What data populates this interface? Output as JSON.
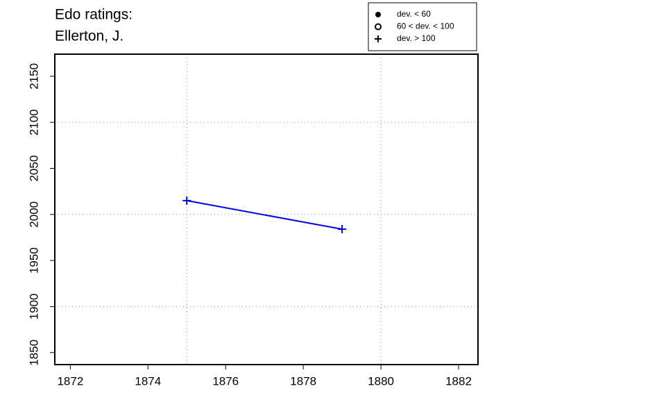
{
  "chart_data": {
    "type": "line",
    "title": [
      "Edo ratings:",
      "Ellerton, J."
    ],
    "x": [
      1875,
      1879
    ],
    "series": [
      {
        "name": "Ellerton, J.",
        "color": "#0000ee",
        "marker": "plus",
        "values": [
          2015,
          1984
        ]
      }
    ],
    "xlim": [
      1871.6,
      1882.5
    ],
    "xticks": [
      1872,
      1874,
      1876,
      1878,
      1880,
      1882
    ],
    "ylim": [
      1837,
      2174
    ],
    "yticks": [
      1850,
      1900,
      1950,
      2000,
      2050,
      2100,
      2150
    ],
    "xgrid": [
      1875,
      1880
    ],
    "ygrid": [
      1900,
      2000,
      2100
    ],
    "legend": {
      "position": "top-right",
      "items": [
        {
          "label": "dev. < 60",
          "marker": "dot"
        },
        {
          "label": "60 < dev. < 100",
          "marker": "circle"
        },
        {
          "label": "dev. > 100",
          "marker": "plus"
        }
      ]
    }
  }
}
